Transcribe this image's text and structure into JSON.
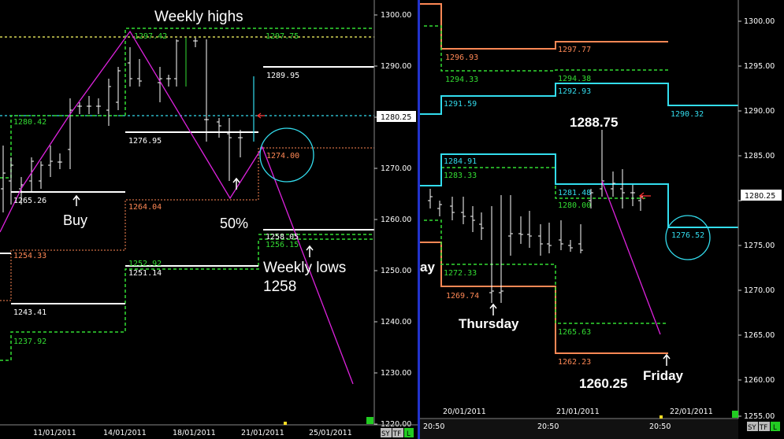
{
  "left_chart": {
    "y_axis_ticks": [
      "1300.00",
      "1290.00",
      "1280.00",
      "1270.00",
      "1260.00",
      "1250.00",
      "1240.00",
      "1230.00",
      "1220.00"
    ],
    "x_axis_ticks": [
      "11/01/2011",
      "14/01/2011",
      "18/01/2011",
      "21/01/2011",
      "25/01/2011"
    ],
    "price_marker": "1280.25",
    "annotations": {
      "weekly_highs": "Weekly highs",
      "buy": "Buy",
      "fifty_pct": "50%",
      "weekly_lows": "Weekly lows",
      "weekly_lows_value": "1258"
    },
    "levels": {
      "l1297_42": "1297.42",
      "l1297_75": "1297.75",
      "l1289_95": "1289.95",
      "l1280_42": "1280.42",
      "l1276_95": "1276.95",
      "l1274_00": "1274.00",
      "l1265_26": "1265.26",
      "l1264_04": "1264.04",
      "l1258_05": "1258.05",
      "l1256_15": "1256.15",
      "l1254_33": "1254.33",
      "l1252_92": "1252.92",
      "l1251_14": "1251.14",
      "l1243_41": "1243.41",
      "l1237_92": "1237.92"
    },
    "footer_buttons": [
      "SY",
      "TF",
      "L"
    ]
  },
  "right_chart": {
    "y_axis_ticks": [
      "1300.00",
      "1295.00",
      "1290.00",
      "1285.00",
      "1280.00",
      "1275.00",
      "1270.00",
      "1265.00",
      "1260.00",
      "1255.00"
    ],
    "x_date_ticks": [
      "20/01/2011",
      "21/01/2011",
      "22/01/2011"
    ],
    "x_time_ticks": [
      "20:50",
      "20:50",
      "20:50"
    ],
    "price_marker": "1280.25",
    "annotations": {
      "high_value": "1288.75",
      "thursday": "Thursday",
      "friday": "Friday",
      "low_value": "1260.25",
      "clipped_text": "ay"
    },
    "levels": {
      "l1296_93": "1296.93",
      "l1297_77": "1297.77",
      "l1294_33": "1294.33",
      "l1294_38": "1294.38",
      "l1291_59": "1291.59",
      "l1292_93": "1292.93",
      "l1290_32": "1290.32",
      "l1284_91": "1284.91",
      "l1283_33": "1283.33",
      "l1281_48": "1281.48",
      "l1280_00": "1280.00",
      "l1276_52": "1276.52",
      "l1272_33": "1272.33",
      "l1269_74": "1269.74",
      "l1265_63": "1265.63",
      "l1262_23": "1262.23"
    },
    "footer_buttons": [
      "SY",
      "TF",
      "L"
    ]
  },
  "colors": {
    "green_level": "#33dd33",
    "cyan_level": "#33ddee",
    "orange_level": "#ff8855",
    "magenta_path": "#dd22dd",
    "white_level": "#ffffff",
    "yellow_dashed": "#ffff66",
    "divider_blue": "#2233cc"
  }
}
